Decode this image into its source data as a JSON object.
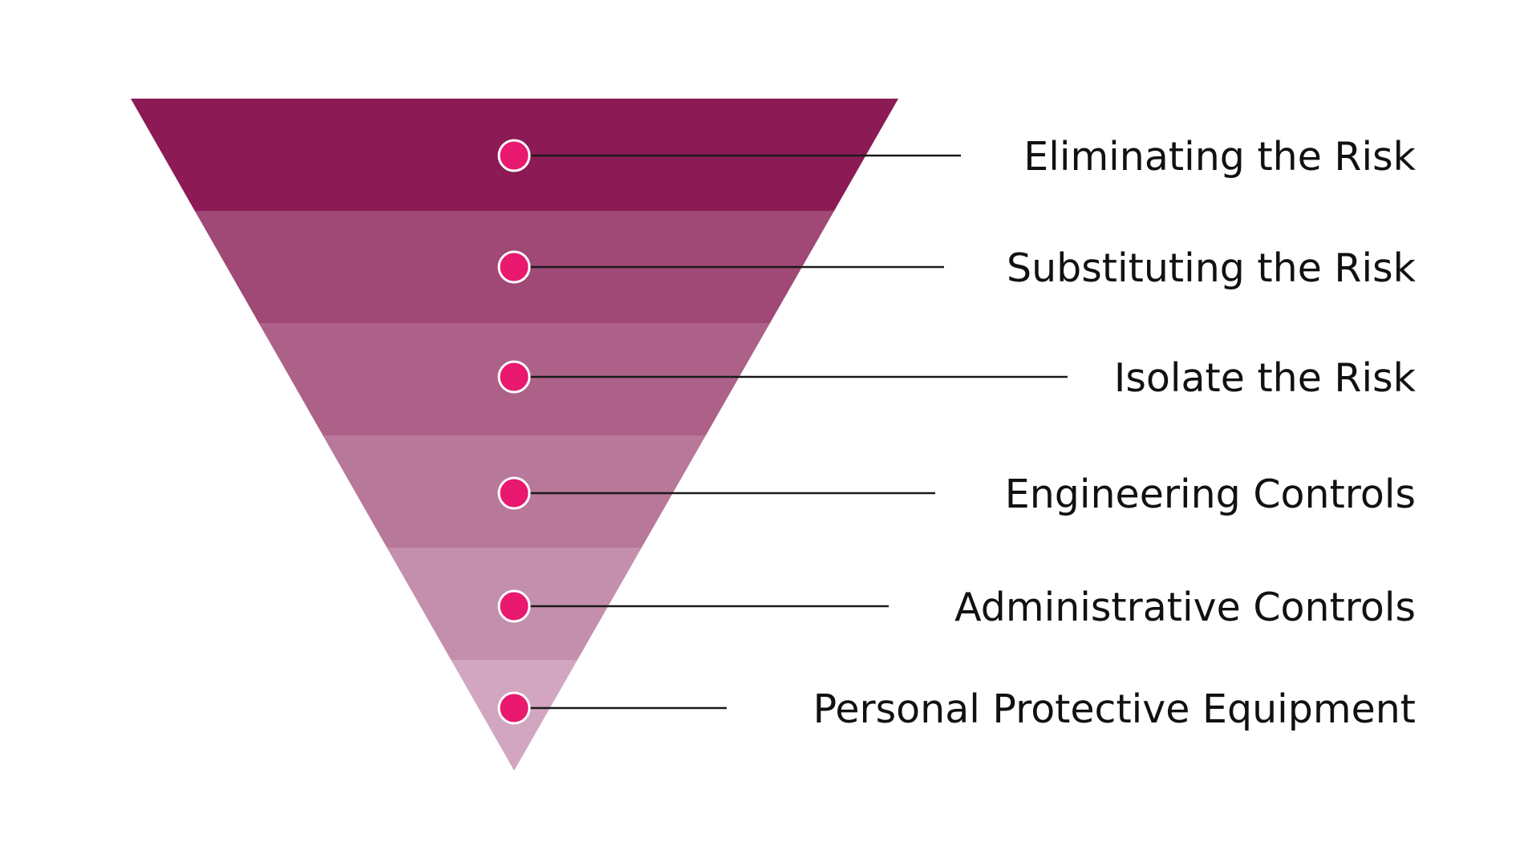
{
  "hierarchy": {
    "levels": [
      {
        "label": "Eliminating the Risk",
        "color": "#8b1a55"
      },
      {
        "label": "Substituting the Risk",
        "color": "#a04876"
      },
      {
        "label": "Isolate the Risk",
        "color": "#ad6188"
      },
      {
        "label": "Engineering Controls",
        "color": "#b8789a"
      },
      {
        "label": "Administrative Controls",
        "color": "#c48ead"
      },
      {
        "label": "Personal Protective Equipment",
        "color": "#d2a6c0"
      }
    ],
    "marker_color": "#e8196e"
  }
}
